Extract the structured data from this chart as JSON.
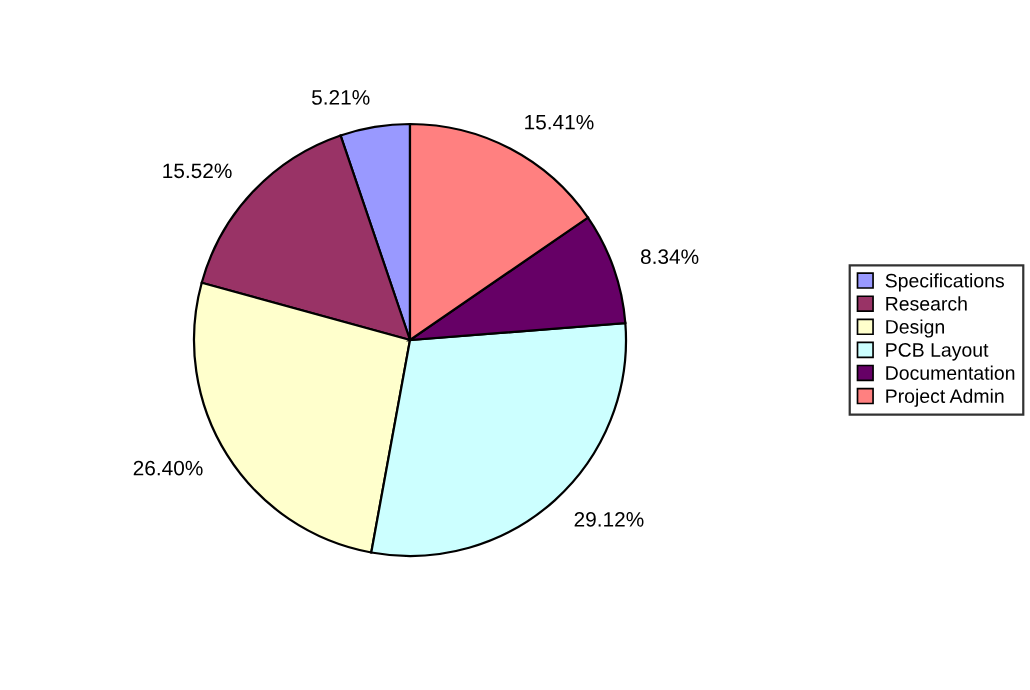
{
  "chart_data": {
    "type": "pie",
    "categories": [
      "Specifications",
      "Research",
      "Design",
      "PCB Layout",
      "Documentation",
      "Project Admin"
    ],
    "values": [
      5.21,
      15.52,
      26.4,
      29.12,
      8.34,
      15.41
    ],
    "value_labels": [
      "5.21%",
      "15.52%",
      "26.40%",
      "29.12%",
      "8.34%",
      "15.41%"
    ],
    "colors": [
      "#9999ff",
      "#993366",
      "#ffffcc",
      "#ccffff",
      "#660066",
      "#ff8080"
    ],
    "legend": "right"
  }
}
